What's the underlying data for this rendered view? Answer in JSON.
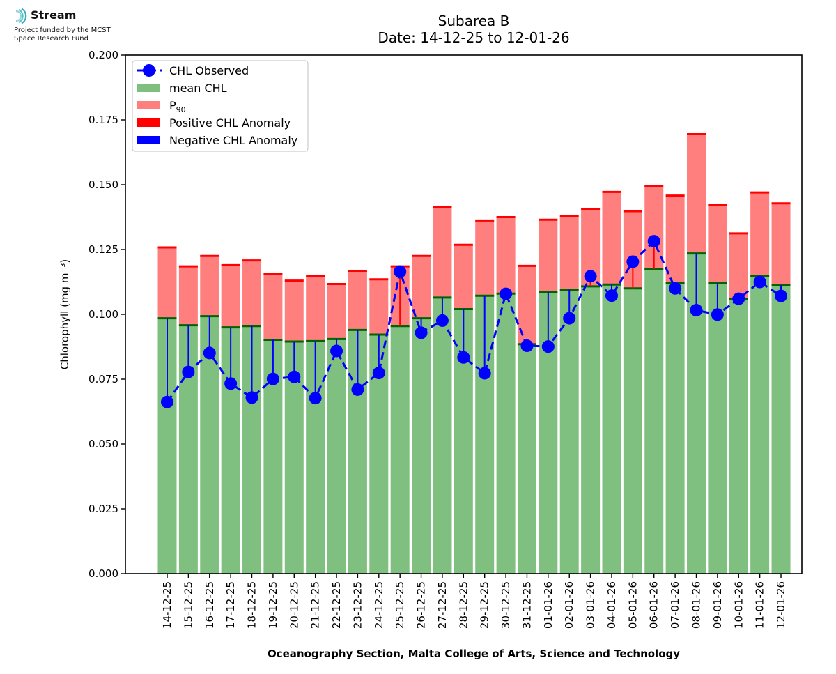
{
  "logo": {
    "name": "Stream",
    "line1": "Project funded by the MCST",
    "line2": "Space Research Fund"
  },
  "chart_data": {
    "type": "bar",
    "title": "Subarea B",
    "subtitle": "Date: 14-12-25 to 12-01-26",
    "ylabel": "Chlorophyll (mg m⁻³)",
    "xlabel": "Oceanography Section, Malta College of Arts, Science and Technology",
    "ylim": [
      0,
      0.2
    ],
    "yticks": [
      "0.000",
      "0.025",
      "0.050",
      "0.075",
      "0.100",
      "0.125",
      "0.150",
      "0.175",
      "0.200"
    ],
    "categories": [
      "14-12-25",
      "15-12-25",
      "16-12-25",
      "17-12-25",
      "18-12-25",
      "19-12-25",
      "20-12-25",
      "21-12-25",
      "22-12-25",
      "23-12-25",
      "24-12-25",
      "25-12-25",
      "26-12-25",
      "27-12-25",
      "28-12-25",
      "29-12-25",
      "30-12-25",
      "31-12-25",
      "01-01-26",
      "02-01-26",
      "03-01-26",
      "04-01-26",
      "05-01-26",
      "06-01-26",
      "07-01-26",
      "08-01-26",
      "09-01-26",
      "10-01-26",
      "11-01-26",
      "12-01-26"
    ],
    "series": [
      {
        "name": "mean CHL",
        "color": "#7fbf7f",
        "edge_color": "#006400",
        "values": [
          0.0985,
          0.0958,
          0.0993,
          0.095,
          0.0955,
          0.0902,
          0.0895,
          0.0897,
          0.0905,
          0.094,
          0.0922,
          0.0955,
          0.0985,
          0.1065,
          0.102,
          0.1072,
          0.108,
          0.0885,
          0.1085,
          0.1095,
          0.1108,
          0.1115,
          0.11,
          0.1175,
          0.1122,
          0.1235,
          0.112,
          0.106,
          0.1148,
          0.1112
        ]
      },
      {
        "name": "P90",
        "label_main": "P",
        "label_sub": "90",
        "color": "#ff7f7f",
        "edge_color": "#ff0000",
        "values": [
          0.1258,
          0.1185,
          0.1225,
          0.119,
          0.1208,
          0.1156,
          0.113,
          0.1148,
          0.1117,
          0.1168,
          0.1135,
          0.1185,
          0.1225,
          0.1415,
          0.1268,
          0.1362,
          0.1375,
          0.1187,
          0.1365,
          0.1378,
          0.1405,
          0.1472,
          0.1398,
          0.1495,
          0.1458,
          0.1695,
          0.1423,
          0.1312,
          0.147,
          0.1428
        ]
      },
      {
        "name": "CHL Observed",
        "color": "#0000ff",
        "values": [
          0.0662,
          0.0778,
          0.0851,
          0.0733,
          0.0679,
          0.0751,
          0.0759,
          0.0677,
          0.0859,
          0.071,
          0.0774,
          0.1165,
          0.0929,
          0.0976,
          0.0834,
          0.0773,
          0.1079,
          0.0879,
          0.0876,
          0.0985,
          0.1147,
          0.1072,
          0.1203,
          0.1282,
          0.11,
          0.1016,
          0.0999,
          0.106,
          0.1125,
          0.1071
        ]
      }
    ],
    "legend": {
      "position": "top-left",
      "entries": [
        {
          "label": "CHL Observed",
          "kind": "line-marker",
          "color": "#0000ff"
        },
        {
          "label": "mean CHL",
          "kind": "patch",
          "color": "#7fbf7f"
        },
        {
          "label_main": "P",
          "label_sub": "90",
          "kind": "patch",
          "color": "#ff7f7f"
        },
        {
          "label": "Positive CHL Anomaly",
          "kind": "patch",
          "color": "#ff0000"
        },
        {
          "label": "Negative CHL Anomaly",
          "kind": "patch",
          "color": "#0000ff"
        }
      ]
    },
    "anomaly_colors": {
      "positive": "#ff0000",
      "negative": "#0000ff"
    },
    "grid": false
  }
}
